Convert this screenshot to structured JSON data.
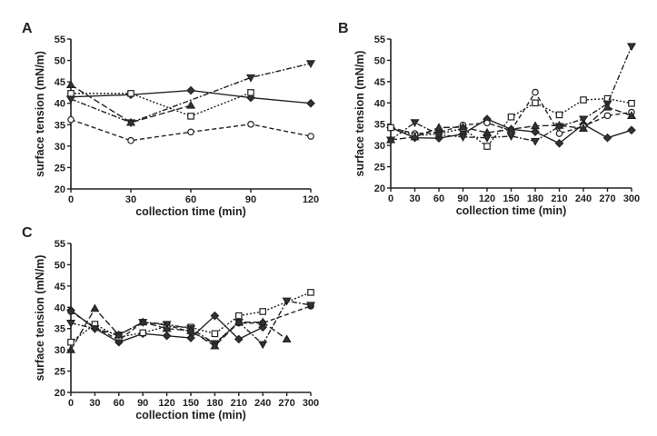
{
  "chart_data": [
    {
      "panel": "A",
      "type": "line",
      "xlabel": "collection time (min)",
      "ylabel": "surface tension (mN/m)",
      "xticks": [
        0,
        30,
        60,
        90,
        120
      ],
      "yticks": [
        20,
        25,
        30,
        35,
        40,
        45,
        50,
        55
      ],
      "xlim": [
        0,
        120
      ],
      "ylim": [
        20,
        55
      ],
      "grid": false,
      "x": [
        0,
        30,
        60,
        90,
        120
      ],
      "series": [
        {
          "marker": "diamond",
          "line": "solid",
          "values": [
            41.5,
            42,
            43,
            41.3,
            40
          ]
        },
        {
          "marker": "circle-open",
          "line": "dashed",
          "values": [
            36.2,
            31.3,
            33.3,
            35.1,
            32.3
          ]
        },
        {
          "marker": "square-open",
          "line": "dotted",
          "values": [
            42.3,
            42.3,
            37,
            42.5,
            null
          ]
        },
        {
          "marker": "triangle-down",
          "line": "dashdot",
          "values": [
            41,
            35.5,
            null,
            46,
            49.3
          ]
        },
        {
          "marker": "triangle-up",
          "line": "longdash",
          "values": [
            44.3,
            35.5,
            39.5,
            null,
            null
          ]
        }
      ]
    },
    {
      "panel": "B",
      "type": "line",
      "xlabel": "collection time (min)",
      "ylabel": "surface tension (mN/m)",
      "xticks": [
        0,
        30,
        60,
        90,
        120,
        150,
        180,
        210,
        240,
        270,
        300
      ],
      "yticks": [
        20,
        25,
        30,
        35,
        40,
        45,
        50,
        55
      ],
      "xlim": [
        0,
        300
      ],
      "ylim": [
        20,
        55
      ],
      "grid": false,
      "x": [
        0,
        30,
        60,
        90,
        120,
        150,
        180,
        210,
        240,
        270,
        300
      ],
      "series": [
        {
          "marker": "diamond",
          "line": "solid",
          "values": [
            34.2,
            31.8,
            31.7,
            32.7,
            36.2,
            33.8,
            33.2,
            30.5,
            35,
            31.8,
            33.6
          ]
        },
        {
          "marker": "circle-open",
          "line": "dashed",
          "values": [
            34.2,
            32.8,
            33,
            34.8,
            35.3,
            33.5,
            42.5,
            32.8,
            34.5,
            37,
            37.8
          ]
        },
        {
          "marker": "square-open",
          "line": "dotted",
          "values": [
            34.2,
            32.3,
            32.7,
            34,
            29.8,
            36.7,
            40,
            37.2,
            40.7,
            41,
            39.9
          ]
        },
        {
          "marker": "triangle-down",
          "line": "dashdot",
          "values": [
            31.3,
            35.4,
            32.5,
            32,
            31.8,
            32.2,
            31,
            34.5,
            36.2,
            39.8,
            53.3
          ]
        },
        {
          "marker": "triangle-up",
          "line": "longdash",
          "values": [
            31.3,
            32,
            34.2,
            34.3,
            33,
            33.8,
            34.6,
            34.7,
            34,
            39,
            37
          ]
        }
      ]
    },
    {
      "panel": "C",
      "type": "line",
      "xlabel": "collection time (min)",
      "ylabel": "surface tension (mN/m)",
      "xticks": [
        0,
        30,
        60,
        90,
        120,
        150,
        180,
        210,
        240,
        270,
        300
      ],
      "yticks": [
        20,
        25,
        30,
        35,
        40,
        45,
        50,
        55
      ],
      "xlim": [
        0,
        300
      ],
      "ylim": [
        20,
        55
      ],
      "grid": false,
      "x": [
        0,
        30,
        60,
        90,
        120,
        150,
        180,
        210,
        240,
        270,
        300
      ],
      "series": [
        {
          "marker": "diamond",
          "line": "solid",
          "values": [
            39.3,
            35,
            31.8,
            33.8,
            33.3,
            32.8,
            38,
            32.5,
            35.3,
            null,
            null
          ]
        },
        {
          "marker": "circle",
          "line": "dashed",
          "values": [
            39,
            35.3,
            32.3,
            36.5,
            35.8,
            34.2,
            31.5,
            36.3,
            36.3,
            null,
            40.3
          ]
        },
        {
          "marker": "square-open",
          "line": "dotted",
          "values": [
            31.8,
            36,
            33,
            34,
            35.5,
            35.3,
            33.8,
            38,
            39,
            null,
            43.5
          ]
        },
        {
          "marker": "triangle-down",
          "line": "dashdot",
          "values": [
            36.3,
            35,
            33.5,
            36.5,
            36,
            35,
            31.5,
            36.5,
            31.3,
            41.5,
            40.5
          ]
        },
        {
          "marker": "triangle-up",
          "line": "longdash",
          "values": [
            30,
            39.7,
            33.5,
            36.5,
            35,
            34.5,
            30.9,
            36.5,
            36.5,
            32.5,
            null
          ]
        }
      ]
    }
  ]
}
